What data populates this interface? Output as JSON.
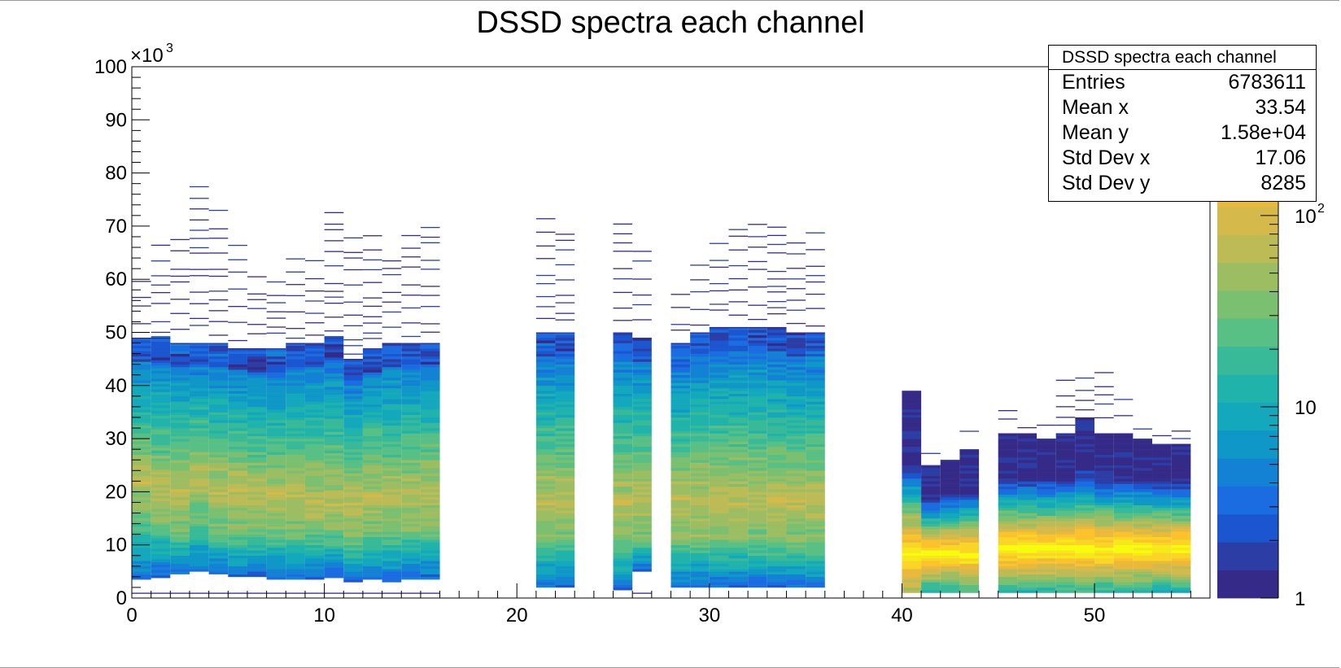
{
  "chart_data": {
    "type": "heatmap",
    "title": "DSSD spectra each channel",
    "x_axis": {
      "range": [
        0,
        56
      ],
      "ticks": [
        0,
        10,
        20,
        30,
        40,
        50
      ]
    },
    "y_axis": {
      "range": [
        0,
        100
      ],
      "ticks": [
        0,
        10,
        20,
        30,
        40,
        50,
        60,
        70,
        80,
        90,
        100
      ],
      "multiplier_label": "×10",
      "multiplier_exp": "3"
    },
    "z_axis": {
      "scale": "log",
      "range": [
        1,
        600
      ],
      "ticks": [
        {
          "value": 1,
          "label": "1",
          "exp": ""
        },
        {
          "value": 10,
          "label": "10",
          "exp": ""
        },
        {
          "value": 100,
          "label": "10",
          "exp": "2"
        }
      ]
    },
    "palette": [
      "#352a87",
      "#2c3ea6",
      "#1b56d0",
      "#1a6ce0",
      "#1482d4",
      "#0f97c8",
      "#14a8bd",
      "#20b3ac",
      "#38ba98",
      "#58bf85",
      "#7bbf70",
      "#9dbd62",
      "#bcbb56",
      "#d5ba4b",
      "#eab93c",
      "#fbc22c",
      "#fad525",
      "#f6e81b",
      "#f9fb0e"
    ],
    "columns": [
      {
        "x": 0,
        "low": 3.5,
        "high": 49,
        "outer": 60,
        "peak": 22,
        "lowZone": 18
      },
      {
        "x": 1,
        "low": 3.8,
        "high": 49,
        "outer": 67,
        "peak": 20,
        "lowZone": 16
      },
      {
        "x": 2,
        "low": 4.5,
        "high": 48,
        "outer": 68,
        "peak": 20,
        "lowZone": 14
      },
      {
        "x": 3,
        "low": 5,
        "high": 48,
        "outer": 79,
        "peak": 22,
        "lowZone": 16
      },
      {
        "x": 4,
        "low": 4.5,
        "high": 48,
        "outer": 74,
        "peak": 20,
        "lowZone": 14
      },
      {
        "x": 5,
        "low": 4,
        "high": 47,
        "outer": 68,
        "peak": 20,
        "lowZone": 14
      },
      {
        "x": 6,
        "low": 4,
        "high": 47,
        "outer": 62,
        "peak": 19,
        "lowZone": 14
      },
      {
        "x": 7,
        "low": 3.5,
        "high": 47,
        "outer": 61,
        "peak": 19,
        "lowZone": 14
      },
      {
        "x": 8,
        "low": 3.5,
        "high": 48,
        "outer": 64,
        "peak": 19,
        "lowZone": 14
      },
      {
        "x": 9,
        "low": 3.5,
        "high": 48,
        "outer": 65,
        "peak": 18,
        "lowZone": 14
      },
      {
        "x": 10,
        "low": 3.8,
        "high": 49,
        "outer": 73,
        "peak": 18,
        "lowZone": 14
      },
      {
        "x": 11,
        "low": 3,
        "high": 45,
        "outer": 68,
        "peak": 17,
        "lowZone": 12
      },
      {
        "x": 12,
        "low": 3.5,
        "high": 47,
        "outer": 71,
        "peak": 19,
        "lowZone": 14
      },
      {
        "x": 13,
        "low": 3,
        "high": 48,
        "outer": 64,
        "peak": 19,
        "lowZone": 14
      },
      {
        "x": 14,
        "low": 3.5,
        "high": 48,
        "outer": 69,
        "peak": 19,
        "lowZone": 14
      },
      {
        "x": 15,
        "low": 3.5,
        "high": 48,
        "outer": 70,
        "peak": 19,
        "lowZone": 14
      },
      {
        "x": 21,
        "low": 2,
        "high": 50,
        "outer": 73,
        "peak": 18,
        "lowZone": 12
      },
      {
        "x": 22,
        "low": 2,
        "high": 50,
        "outer": 71,
        "peak": 18,
        "lowZone": 12
      },
      {
        "x": 25,
        "low": 1.5,
        "high": 50,
        "outer": 71,
        "peak": 18,
        "lowZone": 12
      },
      {
        "x": 26,
        "low": 5,
        "high": 49,
        "outer": 66,
        "peak": 18,
        "lowZone": 12
      },
      {
        "x": 28,
        "low": 2,
        "high": 48,
        "outer": 59,
        "peak": 18,
        "lowZone": 12
      },
      {
        "x": 29,
        "low": 2,
        "high": 50,
        "outer": 66,
        "peak": 18,
        "lowZone": 12
      },
      {
        "x": 30,
        "low": 2,
        "high": 51,
        "outer": 70,
        "peak": 18,
        "lowZone": 12
      },
      {
        "x": 31,
        "low": 2,
        "high": 51,
        "outer": 70,
        "peak": 18,
        "lowZone": 12
      },
      {
        "x": 32,
        "low": 2,
        "high": 51,
        "outer": 71,
        "peak": 18,
        "lowZone": 12
      },
      {
        "x": 33,
        "low": 2,
        "high": 51,
        "outer": 70,
        "peak": 18,
        "lowZone": 12
      },
      {
        "x": 34,
        "low": 2,
        "high": 50,
        "outer": 68,
        "peak": 18,
        "lowZone": 12
      },
      {
        "x": 35,
        "low": 2,
        "high": 50,
        "outer": 70,
        "peak": 18,
        "lowZone": 12
      },
      {
        "x": 40,
        "low": 1,
        "high": 39,
        "outer": 40,
        "peak": 8,
        "lowZone": 5,
        "hot": true
      },
      {
        "x": 41,
        "low": 1,
        "high": 25,
        "outer": 28,
        "peak": 8,
        "lowZone": 5,
        "hot": true
      },
      {
        "x": 42,
        "low": 1,
        "high": 26,
        "outer": 28,
        "peak": 8,
        "lowZone": 5,
        "hot": true
      },
      {
        "x": 43,
        "low": 1,
        "high": 28,
        "outer": 32,
        "peak": 8,
        "lowZone": 5,
        "hot": true
      },
      {
        "x": 45,
        "low": 1,
        "high": 31,
        "outer": 36,
        "peak": 9,
        "lowZone": 5,
        "hot": true
      },
      {
        "x": 46,
        "low": 1,
        "high": 31,
        "outer": 34,
        "peak": 9,
        "lowZone": 5,
        "hot": true
      },
      {
        "x": 47,
        "low": 1,
        "high": 30,
        "outer": 35,
        "peak": 9,
        "lowZone": 5,
        "hot": true
      },
      {
        "x": 48,
        "low": 1,
        "high": 31,
        "outer": 42,
        "peak": 9,
        "lowZone": 5,
        "hot": true
      },
      {
        "x": 49,
        "low": 1,
        "high": 34,
        "outer": 42,
        "peak": 9,
        "lowZone": 5,
        "hot": true
      },
      {
        "x": 50,
        "low": 1,
        "high": 31,
        "outer": 44,
        "peak": 9,
        "lowZone": 5,
        "hot": true
      },
      {
        "x": 51,
        "low": 1,
        "high": 31,
        "outer": 39,
        "peak": 9,
        "lowZone": 5,
        "hot": true
      },
      {
        "x": 52,
        "low": 1,
        "high": 30,
        "outer": 34,
        "peak": 9,
        "lowZone": 5,
        "hot": true
      },
      {
        "x": 53,
        "low": 1,
        "high": 29,
        "outer": 31,
        "peak": 9,
        "lowZone": 5,
        "hot": true
      },
      {
        "x": 54,
        "low": 1,
        "high": 29,
        "outer": 34,
        "peak": 9,
        "lowZone": 5,
        "hot": true
      }
    ]
  },
  "stats": {
    "title": "DSSD spectra each channel",
    "rows": [
      {
        "label": "Entries",
        "value": "6783611"
      },
      {
        "label": "Mean x",
        "value": "33.54"
      },
      {
        "label": "Mean y",
        "value": "1.58e+04"
      },
      {
        "label": "Std Dev x",
        "value": "17.06"
      },
      {
        "label": "Std Dev y",
        "value": "8285"
      }
    ]
  }
}
